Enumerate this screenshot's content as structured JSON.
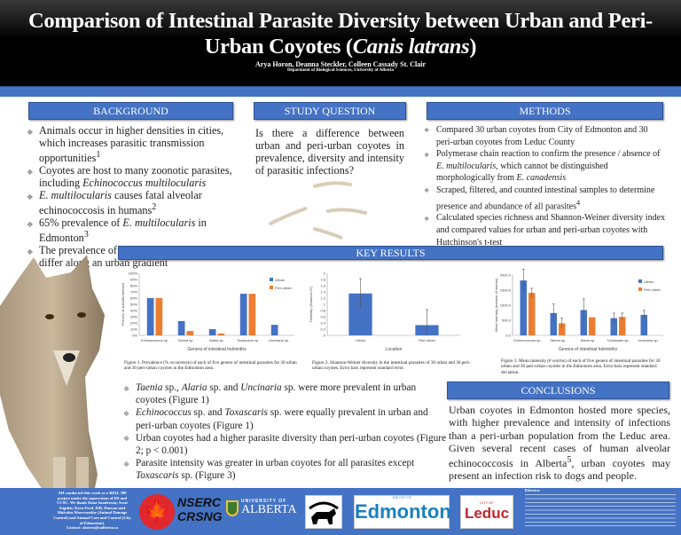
{
  "header": {
    "title_part1": "Comparison of Intestinal Parasite Diversity between Urban and Peri-Urban Coyotes (",
    "title_species": "Canis latrans",
    "title_part2": ")",
    "authors": "Arya Horon, Deanna Steckler, Colleen Cassady St. Clair",
    "department": "Department of Biological Sciences, University of Alberta"
  },
  "background": {
    "heading": "BACKGROUND",
    "items": [
      {
        "a": "Animals occur in higher densities in cities, which increases parasitic transmission opportunities",
        "sup": "1"
      },
      {
        "a": "Coyotes are host to many zoonotic parasites, including ",
        "i": "Echinococcus multilocularis"
      },
      {
        "i0": "E. multilocularis",
        "a": " causes fatal alveolar echinococcosis in humans",
        "sup": "2"
      },
      {
        "a": "65% prevalence of ",
        "i": "E. multilocularis",
        "b": " in Edmonton",
        "sup": "3"
      },
      {
        "a": "The prevalence of other parasites may also differ along an urban gradient"
      }
    ]
  },
  "study_question": {
    "heading": "STUDY QUESTION",
    "text": "Is there a difference between urban and peri-urban coyotes in prevalence, diversity and intensity of parasitic infections?"
  },
  "methods": {
    "heading": "METHODS",
    "items": [
      {
        "a": "Compared 30 urban coyotes from City of Edmonton and 30 peri-urban coyotes from Leduc County"
      },
      {
        "a": "Polymerase chain reaction to confirm the presence / absence of ",
        "i": "E. multilocularis",
        "b": ", which cannot be distinguished morphologically from ",
        "i2": "E. canadensis"
      },
      {
        "a": "Scraped, filtered, and counted intestinal samples to determine presence and abundance of all parasites",
        "sup": "4"
      },
      {
        "a": "Calculated species richness and Shannon-Weiner diversity index and compared values for urban and peri-urban coyotes with Hutchinson's t-test"
      }
    ]
  },
  "key_results": {
    "heading": "KEY RESULTS",
    "items": [
      {
        "i": "Taenia",
        "a": " sp., ",
        "i2": "Alaria",
        "b": " sp. and ",
        "i3": "Uncinaria",
        "c": " sp. were more prevalent in urban coyotes (Figure 1)"
      },
      {
        "i": "Echinococcus",
        "a": " sp. and ",
        "i2": "Toxascaris",
        "b": " sp. were equally prevalent in urban and peri-urban coyotes (Figure 1)"
      },
      {
        "a": "Urban coyotes had a higher parasite diversity than peri-urban coyotes (Figure 2; p < 0.001)"
      },
      {
        "a": "Parasite intensity was greater in urban coyotes for all parasites except ",
        "i": "Toxascaris",
        "b": " sp. (Figure 3)"
      }
    ]
  },
  "conclusions": {
    "heading": "CONCLUSIONS",
    "text_a": "Urban coyotes in Edmonton hosted more species, with higher prevalence and intensity of infections than a peri-urban population from the Leduc area. Given several recent cases of human alveolar echinococcosis in Alberta",
    "sup": "5",
    "text_b": ", urban coyotes may present an infection risk to dogs and people."
  },
  "colors": {
    "urban": "#4472c4",
    "peri_urban": "#ed7d31",
    "accent": "#4472c4",
    "error_bar": "#555555"
  },
  "chart_data": [
    {
      "type": "bar",
      "caption": "Figure 1. Prevalence (% occurrence) of each of five genera of intestinal parasites for 30 urban and 30 peri-urban coyotes in the Edmonton area.",
      "xlabel": "Genera of intestinal helminths",
      "ylabel": "Percent of animals infected",
      "categories": [
        "Echinococcus sp.",
        "Taenia sp.",
        "Alaria sp.",
        "Toxascaris sp.",
        "Uncinaria sp."
      ],
      "series": [
        {
          "name": "Urban",
          "values": [
            60,
            23,
            10,
            67,
            17
          ]
        },
        {
          "name": "Peri-urban",
          "values": [
            60,
            7,
            3,
            67,
            0
          ]
        }
      ],
      "ylim": [
        0,
        100
      ],
      "yticks": [
        "0%",
        "10%",
        "20%",
        "30%",
        "40%",
        "50%",
        "60%",
        "70%",
        "80%",
        "90%",
        "100%"
      ],
      "legend": "top-right",
      "grid": false
    },
    {
      "type": "bar",
      "caption": "Figure 2. Shannon-Weiner diversity in the intestinal parasites of 30 urban and 30 peri-urban coyotes. Error bars represent standard error.",
      "xlabel": "Location",
      "ylabel": "Diversity (Shannon H')",
      "categories": [
        "Urban",
        "Peri-urban"
      ],
      "series": [
        {
          "values": [
            1.35,
            0.33
          ],
          "errors": [
            0.48,
            0.5
          ]
        }
      ],
      "ylim": [
        0,
        2
      ],
      "yticks": [
        "0",
        "0.2",
        "0.4",
        "0.6",
        "0.8",
        "1",
        "1.2",
        "1.4",
        "1.6",
        "1.8",
        "2"
      ],
      "grid": false
    },
    {
      "type": "bar",
      "caption": "Figure 3. Mean intensity (# worms) of each of five genera of intestinal parasites for 30 urban and 30 peri-urban coyotes in the Edmonton area. Error bars represent standard deviation.",
      "xlabel": "Genera of intestinal helminths",
      "ylabel": "Mean intensity (number of worms)",
      "categories": [
        "Echinococcus sp.",
        "Taenia sp.",
        "Alaria sp.",
        "Toxascaris sp.",
        "Uncinaria sp."
      ],
      "series": [
        {
          "name": "Urban",
          "values": [
            1820,
            740,
            840,
            570,
            680
          ],
          "errors": [
            380,
            300,
            370,
            170,
            150
          ]
        },
        {
          "name": "Peri-urban",
          "values": [
            1410,
            400,
            600,
            610,
            null
          ],
          "errors": [
            150,
            170,
            null,
            130,
            null
          ]
        }
      ],
      "ylim": [
        0,
        2000
      ],
      "yticks": [
        "0.0",
        "500.0",
        "1000.0",
        "1500.0",
        "2000.0"
      ],
      "legend": "top-right",
      "grid": false
    }
  ],
  "footer": {
    "acknowledgement": "AH conducted this work as a BIOL 398 project under the supervision of DS and CCSC. We thank Dana Sanderson; Scott Sugden; Kyra Ford, ISB, Duncan and Malcolm Abercrombie (Animal Damage Control) and Animal Care and Control (City of Edmonton).",
    "contact": "Contact: ahoron@ualberta.ca",
    "logos": {
      "nserc": "NSERC",
      "crsng": "CRSNG",
      "ua_top": "UNIVERSITY OF",
      "ua_bottom": "ALBERTA",
      "edm_small": "THE CITY OF",
      "edm": "Edmonton",
      "leduc_small": "CITY OF",
      "leduc": "Leduc"
    },
    "references_heading": "References"
  }
}
